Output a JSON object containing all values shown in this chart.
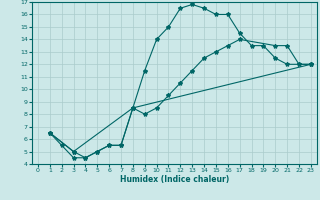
{
  "xlabel": "Humidex (Indice chaleur)",
  "bg_color": "#cce8e8",
  "grid_color": "#aacccc",
  "line_color": "#006666",
  "xlim": [
    -0.5,
    23.5
  ],
  "ylim": [
    4,
    17
  ],
  "xticks": [
    0,
    1,
    2,
    3,
    4,
    5,
    6,
    7,
    8,
    9,
    10,
    11,
    12,
    13,
    14,
    15,
    16,
    17,
    18,
    19,
    20,
    21,
    22,
    23
  ],
  "yticks": [
    4,
    5,
    6,
    7,
    8,
    9,
    10,
    11,
    12,
    13,
    14,
    15,
    16,
    17
  ],
  "curve1_x": [
    1,
    2,
    3,
    4,
    5,
    6,
    7,
    8,
    9,
    10,
    11,
    12,
    13,
    14,
    15,
    16,
    17,
    18,
    19,
    20,
    21,
    22,
    23
  ],
  "curve1_y": [
    6.5,
    5.5,
    4.5,
    4.5,
    5.0,
    5.5,
    5.5,
    8.5,
    11.5,
    14.0,
    15.0,
    16.5,
    16.8,
    16.5,
    16.0,
    16.0,
    14.5,
    13.5,
    13.5,
    12.5,
    12.0,
    12.0,
    12.0
  ],
  "curve2_x": [
    1,
    3,
    4,
    5,
    6,
    7,
    8,
    9,
    10,
    11,
    12,
    13,
    14,
    15,
    16,
    17,
    20,
    21,
    22,
    23
  ],
  "curve2_y": [
    6.5,
    5.0,
    4.5,
    5.0,
    5.5,
    5.5,
    8.5,
    8.0,
    8.5,
    9.5,
    10.5,
    11.5,
    12.5,
    13.0,
    13.5,
    14.0,
    13.5,
    13.5,
    12.0,
    12.0
  ],
  "curve3_x": [
    1,
    3,
    8,
    23
  ],
  "curve3_y": [
    6.5,
    5.0,
    8.5,
    12.0
  ]
}
